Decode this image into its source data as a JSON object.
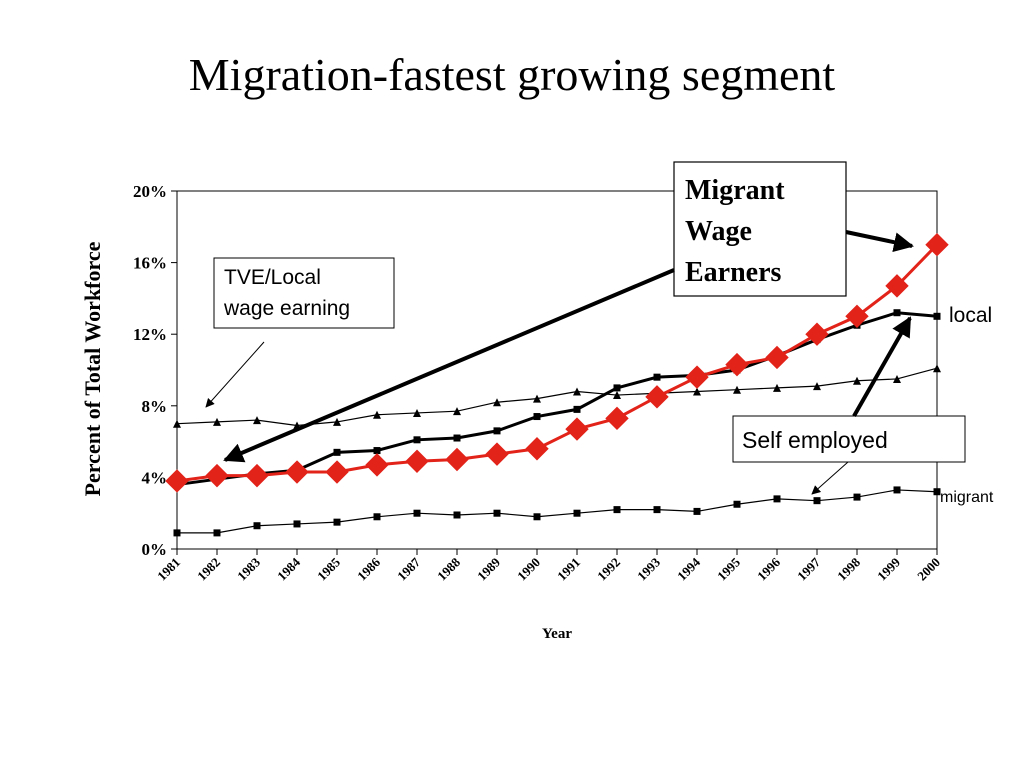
{
  "slide": {
    "title": "Migration-fastest growing segment"
  },
  "chart_data": {
    "type": "line",
    "x": [
      "1981",
      "1982",
      "1983",
      "1984",
      "1985",
      "1986",
      "1987",
      "1988",
      "1989",
      "1990",
      "1991",
      "1992",
      "1993",
      "1994",
      "1995",
      "1996",
      "1997",
      "1998",
      "1999",
      "2000"
    ],
    "xlabel": "Year",
    "ylabel": "Percent of Total Workforce",
    "ylim": [
      0,
      20
    ],
    "yticks": [
      "0%",
      "4%",
      "8%",
      "12%",
      "16%",
      "20%"
    ],
    "grid": false,
    "series": [
      {
        "name": "Migrant Wage Earners",
        "color": "#e2231a",
        "marker": "diamond",
        "values": [
          3.8,
          4.1,
          4.1,
          4.3,
          4.3,
          4.7,
          4.9,
          5.0,
          5.3,
          5.6,
          6.7,
          7.3,
          8.5,
          9.6,
          10.3,
          10.7,
          12.0,
          13.0,
          14.7,
          17.0
        ]
      },
      {
        "name": "local",
        "color": "#000000",
        "marker": "square",
        "values": [
          3.6,
          3.9,
          4.2,
          4.4,
          5.4,
          5.5,
          6.1,
          6.2,
          6.6,
          7.4,
          7.8,
          9.0,
          9.6,
          9.7,
          10.0,
          10.8,
          11.7,
          12.5,
          13.2,
          13.0
        ]
      },
      {
        "name": "TVE/Local wage earning",
        "color": "#000000",
        "marker": "triangle",
        "values": [
          7.0,
          7.1,
          7.2,
          6.9,
          7.1,
          7.5,
          7.6,
          7.7,
          8.2,
          8.4,
          8.8,
          8.6,
          8.7,
          8.8,
          8.9,
          9.0,
          9.1,
          9.4,
          9.5,
          10.1
        ]
      },
      {
        "name": "migrant",
        "color": "#000000",
        "marker": "square",
        "values": [
          0.9,
          0.9,
          1.3,
          1.4,
          1.5,
          1.8,
          2.0,
          1.9,
          2.0,
          1.8,
          2.0,
          2.2,
          2.2,
          2.1,
          2.5,
          2.8,
          2.7,
          2.9,
          3.3,
          3.2
        ]
      }
    ],
    "annotations": {
      "migrant_wage_earners_lines": [
        "Migrant",
        "Wage",
        "Earners"
      ],
      "tve_lines": [
        "TVE/Local",
        "wage earning"
      ],
      "self_employed": "Self employed",
      "local_label": "local",
      "migrant_label": "migrant"
    }
  }
}
